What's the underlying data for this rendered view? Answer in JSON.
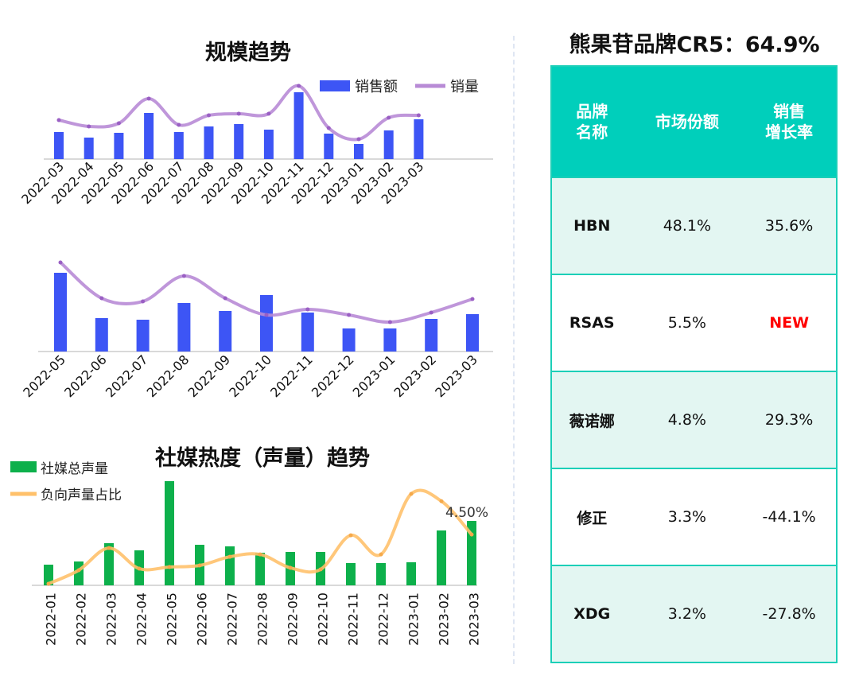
{
  "chart_data": [
    {
      "type": "bar+line",
      "title": "规模趋势",
      "legend_position": "top-right",
      "categories": [
        "2022-03",
        "2022-04",
        "2022-05",
        "2022-06",
        "2022-07",
        "2022-08",
        "2022-09",
        "2022-10",
        "2022-11",
        "2022-12",
        "2023-01",
        "2023-02",
        "2023-03"
      ],
      "series": [
        {
          "name": "销售额",
          "type": "bar",
          "color": "#3d55f5",
          "values": [
            34,
            27,
            33,
            58,
            34,
            41,
            44,
            37,
            84,
            32,
            19,
            36,
            50
          ]
        },
        {
          "name": "销量",
          "type": "line",
          "color": "#b88bd6",
          "values": [
            49,
            41,
            45,
            76,
            43,
            55,
            57,
            57,
            92,
            39,
            25,
            52,
            55
          ]
        }
      ],
      "grid": false
    },
    {
      "type": "bar+line",
      "title": "",
      "categories": [
        "2022-05",
        "2022-06",
        "2022-07",
        "2022-08",
        "2022-09",
        "2022-10",
        "2022-11",
        "2022-12",
        "2023-01",
        "2023-02",
        "2023-03"
      ],
      "series": [
        {
          "type": "bar",
          "color": "#3d55f5",
          "values": [
            99,
            42,
            40,
            61,
            51,
            71,
            49,
            29,
            29,
            41,
            47
          ]
        },
        {
          "type": "line",
          "color": "#b88bd6",
          "values": [
            112,
            67,
            63,
            95,
            67,
            46,
            53,
            46,
            37,
            49,
            66
          ]
        }
      ],
      "grid": false
    },
    {
      "type": "bar+line",
      "title": "社媒热度（声量）趋势",
      "legend_position": "top-left",
      "categories": [
        "2022-01",
        "2022-02",
        "2022-03",
        "2022-04",
        "2022-05",
        "2022-06",
        "2022-07",
        "2022-08",
        "2022-09",
        "2022-10",
        "2022-11",
        "2022-12",
        "2023-01",
        "2023-02",
        "2023-03"
      ],
      "series": [
        {
          "name": "社媒总声量",
          "type": "bar",
          "color": "#0db04b",
          "values": [
            26,
            30,
            53,
            44,
            131,
            51,
            49,
            41,
            42,
            42,
            28,
            28,
            29,
            69,
            81
          ]
        },
        {
          "name": "负向声量占比",
          "type": "line",
          "color": "#ffc16b",
          "unit": "%",
          "values": [
            0.14,
            1.34,
            3.3,
            1.48,
            1.62,
            1.76,
            2.53,
            2.74,
            1.55,
            1.41,
            4.43,
            2.74,
            8.1,
            7.45,
            4.5
          ]
        }
      ],
      "data_labels": [
        {
          "index": 14,
          "series": "负向声量占比",
          "text": "4.50%"
        }
      ],
      "grid": false
    }
  ],
  "table": {
    "title": "熊果苷品牌CR5：64.9%",
    "header_color": "#00cfbb",
    "headers": [
      "品牌\n名称",
      "市场份额",
      "销售\n增长率"
    ],
    "rows": [
      {
        "brand": "HBN",
        "share": "48.1%",
        "growth": "35.6%"
      },
      {
        "brand": "RSAS",
        "share": "5.5%",
        "growth": "NEW"
      },
      {
        "brand": "薇诺娜",
        "share": "4.8%",
        "growth": "29.3%"
      },
      {
        "brand": "修正",
        "share": "3.3%",
        "growth": "-44.1%"
      },
      {
        "brand": "XDG",
        "share": "3.2%",
        "growth": "-27.8%"
      }
    ]
  }
}
